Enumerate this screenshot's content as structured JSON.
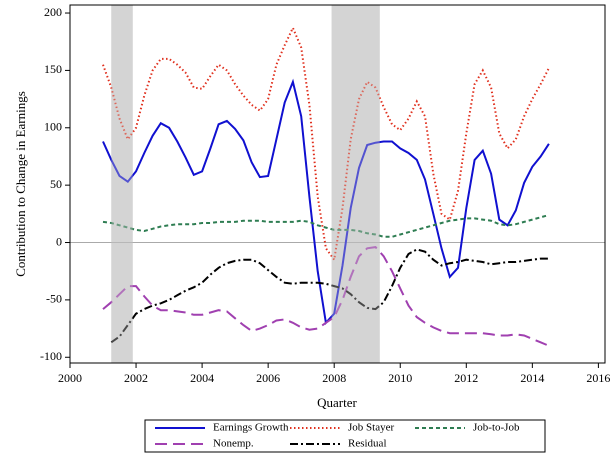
{
  "chart_data": {
    "type": "line",
    "x_label": "Quarter",
    "y_label": "Contribution to Change in Earnings",
    "xlim": [
      2000,
      2016.2
    ],
    "ylim": [
      -105,
      207
    ],
    "xticks": [
      2000,
      2002,
      2004,
      2006,
      2008,
      2010,
      2012,
      2014,
      2016
    ],
    "yticks": [
      -100,
      -50,
      0,
      50,
      100,
      150,
      200
    ],
    "hline": 0,
    "shaded_regions": [
      [
        2001.25,
        2001.9
      ],
      [
        2007.92,
        2009.38
      ]
    ],
    "legend": "bottom",
    "x": [
      2001,
      2001.25,
      2001.5,
      2001.75,
      2002,
      2002.25,
      2002.5,
      2002.75,
      2003,
      2003.25,
      2003.5,
      2003.75,
      2004,
      2004.25,
      2004.5,
      2004.75,
      2005,
      2005.25,
      2005.5,
      2005.75,
      2006,
      2006.25,
      2006.5,
      2006.75,
      2007,
      2007.25,
      2007.5,
      2007.75,
      2008,
      2008.25,
      2008.5,
      2008.75,
      2009,
      2009.25,
      2009.5,
      2009.75,
      2010,
      2010.25,
      2010.5,
      2010.75,
      2011,
      2011.25,
      2011.5,
      2011.75,
      2012,
      2012.25,
      2012.5,
      2012.75,
      2013,
      2013.25,
      2013.5,
      2013.75,
      2014,
      2014.25,
      2014.5
    ],
    "series": [
      {
        "name": "Earnings Growth",
        "color": "#1010d0",
        "style": "solid",
        "values": [
          88,
          72,
          58,
          53,
          62,
          78,
          93,
          104,
          100,
          88,
          74,
          59,
          62,
          82,
          103,
          106,
          99,
          89,
          70,
          57,
          58,
          90,
          122,
          140,
          110,
          40,
          -25,
          -70,
          -62,
          -20,
          30,
          65,
          85,
          87,
          88,
          88,
          82,
          78,
          72,
          55,
          25,
          -5,
          -30,
          -22,
          30,
          72,
          80,
          60,
          20,
          15,
          28,
          52,
          66,
          75,
          86
        ]
      },
      {
        "name": "Job Stayer",
        "color": "#e0301e",
        "style": "dotted",
        "values": [
          155,
          135,
          108,
          90,
          100,
          128,
          150,
          160,
          160,
          155,
          148,
          135,
          134,
          145,
          155,
          150,
          138,
          128,
          120,
          115,
          125,
          155,
          172,
          187,
          170,
          120,
          40,
          -5,
          -15,
          30,
          90,
          125,
          140,
          135,
          118,
          103,
          98,
          108,
          123,
          110,
          60,
          25,
          20,
          45,
          95,
          138,
          150,
          135,
          95,
          82,
          90,
          110,
          125,
          138,
          152
        ]
      },
      {
        "name": "Job-to-Job",
        "color": "#2e7d52",
        "style": "dashed",
        "values": [
          18,
          17,
          15,
          13,
          11,
          10,
          12,
          14,
          15,
          16,
          16,
          16,
          17,
          17,
          18,
          18,
          18,
          19,
          19,
          19,
          18,
          18,
          18,
          18,
          19,
          18,
          15,
          13,
          11,
          11,
          11,
          10,
          8,
          7,
          5,
          5,
          7,
          9,
          11,
          13,
          15,
          17,
          19,
          20,
          21,
          21,
          20,
          19,
          16,
          15,
          16,
          18,
          20,
          22,
          24
        ]
      },
      {
        "name": "Nonemp.",
        "color": "#a040b0",
        "style": "longdash",
        "values": [
          -58,
          -52,
          -45,
          -38,
          -38,
          -47,
          -55,
          -59,
          -59,
          -60,
          -61,
          -63,
          -63,
          -61,
          -59,
          -60,
          -66,
          -72,
          -77,
          -75,
          -72,
          -68,
          -67,
          -70,
          -74,
          -76,
          -75,
          -70,
          -65,
          -50,
          -30,
          -12,
          -5,
          -4,
          -12,
          -25,
          -40,
          -55,
          -65,
          -70,
          -74,
          -77,
          -79,
          -79,
          -79,
          -79,
          -79,
          -80,
          -81,
          -81,
          -80,
          -81,
          -84,
          -87,
          -90
        ]
      },
      {
        "name": "Residual",
        "color": "#000000",
        "style": "dashdot",
        "values": [
          null,
          -87,
          -82,
          -72,
          -62,
          -58,
          -55,
          -53,
          -50,
          -46,
          -42,
          -39,
          -35,
          -28,
          -22,
          -18,
          -16,
          -15,
          -15,
          -18,
          -24,
          -30,
          -35,
          -36,
          -35,
          -35,
          -35,
          -36,
          -38,
          -40,
          -45,
          -52,
          -57,
          -58,
          -52,
          -38,
          -22,
          -10,
          -6,
          -8,
          -15,
          -20,
          -18,
          -17,
          -15,
          -16,
          -17,
          -19,
          -18,
          -17,
          -17,
          -16,
          -15,
          -14,
          -14
        ]
      }
    ]
  }
}
